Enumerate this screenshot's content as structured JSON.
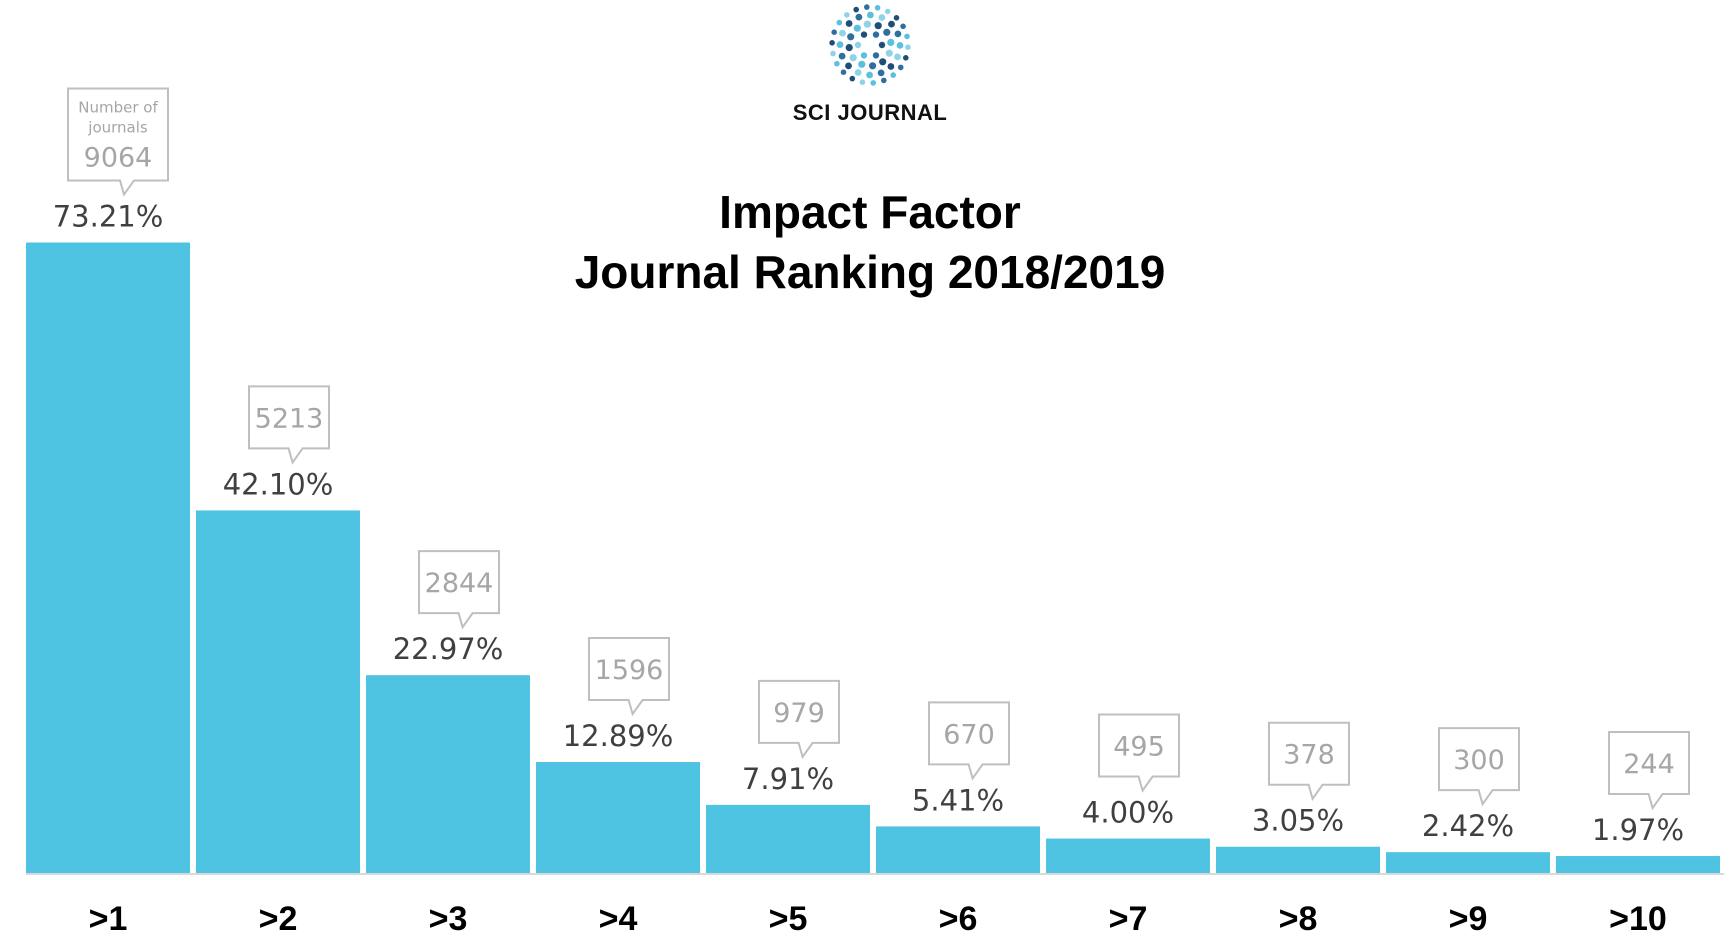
{
  "brand": {
    "name": "SCI JOURNAL",
    "logo_icon": "dotted-circle-logo-icon",
    "colors": [
      "#1f4e79",
      "#2f6f9f",
      "#5bc0de",
      "#8fd3ea"
    ]
  },
  "header": {
    "title_line1": "Impact Factor",
    "title_line2": "Journal Ranking 2018/2019"
  },
  "chart_data": {
    "type": "bar",
    "title": "Impact Factor Journal Ranking 2018/2019",
    "categories": [
      ">1",
      ">2",
      ">3",
      ">4",
      ">5",
      ">6",
      ">7",
      ">8",
      ">9",
      ">10"
    ],
    "series": [
      {
        "values": [
          73.21,
          42.1,
          22.97,
          12.89,
          7.91,
          5.41,
          4.0,
          3.05,
          2.42,
          1.97
        ],
        "labels": [
          "73.21%",
          "42.10%",
          "22.97%",
          "12.89%",
          "7.91%",
          "5.41%",
          "4.00%",
          "3.05%",
          "2.42%",
          "1.97%"
        ]
      }
    ],
    "journal_counts": [
      9064,
      5213,
      2844,
      1596,
      979,
      670,
      495,
      378,
      300,
      244
    ],
    "callout_label_first": [
      "Number of",
      "journals"
    ],
    "ylim": [
      0,
      100
    ],
    "xlabel": "",
    "ylabel": "",
    "grid": false,
    "legend": "none",
    "bar_color": "#4fc3e2",
    "axis_color": "#d9d9d9",
    "callout_border_color": "#bfbfbf",
    "callout_text_color": "#a6a6a6",
    "value_text_color": "#404040",
    "category_text_color": "#000000"
  }
}
